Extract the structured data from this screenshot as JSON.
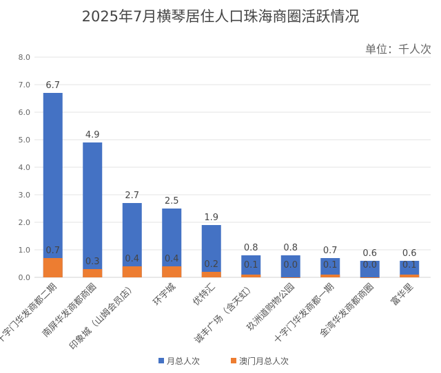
{
  "chart_data": {
    "type": "bar",
    "title": "2025年7月横琴居住人口珠海商圈活跃情况",
    "unit_label": "单位：千人次",
    "categories": [
      "十字门华发商都二期",
      "南屏华发商都商圈",
      "印象城（山姆会员店）",
      "环宇城",
      "优特汇",
      "诚丰广场（含天虹）",
      "玖洲道购物公园",
      "十字门华发商都一期",
      "金湾华发商都商圈",
      "富华里"
    ],
    "series": [
      {
        "name": "月总人次",
        "color": "#4472C4",
        "values": [
          6.7,
          4.9,
          2.7,
          2.5,
          1.9,
          0.8,
          0.8,
          0.7,
          0.6,
          0.6
        ]
      },
      {
        "name": "澳门月总人次",
        "color": "#ED7D31",
        "values": [
          0.7,
          0.3,
          0.4,
          0.4,
          0.2,
          0.1,
          0.0,
          0.1,
          0.0,
          0.1
        ]
      }
    ],
    "ylim": [
      0,
      8
    ],
    "yticks": [
      "0.0",
      "1.0",
      "2.0",
      "3.0",
      "4.0",
      "5.0",
      "6.0",
      "7.0",
      "8.0"
    ],
    "grid": true,
    "legend": "bottom",
    "xlabel": "",
    "ylabel": ""
  }
}
